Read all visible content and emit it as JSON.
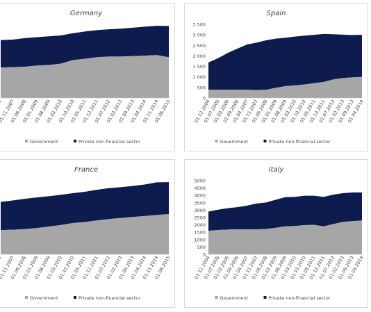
{
  "colors": {
    "government": "#a6a6a6",
    "private": "#0d1b4f",
    "axis_text": "#404040",
    "border": "#d9d9d9"
  },
  "chart_data": [
    {
      "type": "area",
      "stacked": true,
      "title": "Germany",
      "x": [
        "01.04.2007",
        "01.11.2007",
        "01.06.2008",
        "01.01.2009",
        "01.08.2009",
        "01.03.2010",
        "01.10.2010",
        "01.05.2011",
        "01.12.2011",
        "01.07.2012",
        "01.02.2013",
        "01.09.2013",
        "01.04.2014",
        "01.11.2014",
        "01.06.2015"
      ],
      "series": [
        {
          "name": "Government",
          "values": [
            1380,
            1400,
            1420,
            1470,
            1500,
            1560,
            1720,
            1780,
            1850,
            1880,
            1880,
            1900,
            1920,
            1950,
            1850
          ]
        },
        {
          "name": "Private non-financial sector",
          "values": [
            1250,
            1250,
            1300,
            1290,
            1300,
            1280,
            1220,
            1240,
            1230,
            1240,
            1270,
            1290,
            1320,
            1330,
            1420
          ]
        }
      ],
      "legend_position": "bottom"
    },
    {
      "type": "area",
      "stacked": true,
      "title": "Spain",
      "x": [
        "01.12.2004",
        "01.07.2005",
        "01.02.2006",
        "01.09.2006",
        "01.04.2007",
        "01.11.2007",
        "01.06.2008",
        "01.01.2009",
        "01.08.2009",
        "01.03.2010",
        "01.10.2010",
        "01.05.2011",
        "01.12.2011",
        "01.07.2012",
        "01.02.2013",
        "01.09.2013",
        "01.04.2014"
      ],
      "series": [
        {
          "name": "Government",
          "values": [
            390,
            390,
            390,
            390,
            390,
            380,
            390,
            480,
            560,
            600,
            640,
            700,
            760,
            880,
            950,
            980,
            1000
          ]
        },
        {
          "name": "Private non-financial sector",
          "values": [
            1300,
            1500,
            1750,
            1950,
            2150,
            2250,
            2350,
            2340,
            2300,
            2320,
            2320,
            2300,
            2280,
            2150,
            2060,
            2010,
            2000
          ]
        }
      ],
      "ylim": [
        0,
        3500
      ],
      "yticks": [
        "0",
        "500",
        "1 000",
        "1 500",
        "2 000",
        "2 500",
        "3 000",
        "3 500"
      ],
      "legend_position": "bottom"
    },
    {
      "type": "area",
      "stacked": true,
      "title": "France",
      "x": [
        "01.04.2007",
        "01.11.2007",
        "01.06.2008",
        "01.01.2009",
        "01.08.2009",
        "01.03.2010",
        "01.10.2010",
        "01.05.2011",
        "01.12.2011",
        "01.07.2012",
        "01.02.2013",
        "01.09.2013",
        "01.04.2014",
        "01.11.2014",
        "01.06.2015"
      ],
      "series": [
        {
          "name": "Government",
          "values": [
            1200,
            1220,
            1250,
            1300,
            1380,
            1450,
            1550,
            1600,
            1680,
            1750,
            1800,
            1850,
            1900,
            1950,
            2000
          ]
        },
        {
          "name": "Private non-financial sector",
          "values": [
            1400,
            1450,
            1500,
            1520,
            1500,
            1500,
            1480,
            1500,
            1520,
            1530,
            1530,
            1540,
            1560,
            1620,
            1580
          ]
        }
      ],
      "legend_position": "bottom"
    },
    {
      "type": "area",
      "stacked": true,
      "title": "Italy",
      "x": [
        "01.12.2004",
        "01.07.2005",
        "01.02.2006",
        "01.09.2006",
        "01.04.2007",
        "01.11.2007",
        "01.06.2008",
        "01.01.2009",
        "01.08.2009",
        "01.03.2010",
        "01.10.2010",
        "01.05.2011",
        "01.12.2011",
        "01.07.2012",
        "01.02.2013",
        "01.09.2013",
        "01.04.2014"
      ],
      "series": [
        {
          "name": "Government",
          "values": [
            1600,
            1650,
            1680,
            1700,
            1700,
            1700,
            1720,
            1800,
            1900,
            1920,
            1980,
            2000,
            1900,
            2050,
            2200,
            2250,
            2300
          ]
        },
        {
          "name": "Private non-financial sector",
          "values": [
            1300,
            1380,
            1450,
            1500,
            1600,
            1750,
            1800,
            1900,
            1980,
            1980,
            2000,
            1980,
            2000,
            2000,
            1950,
            1950,
            1900
          ]
        }
      ],
      "ylim": [
        0,
        5000
      ],
      "yticks": [
        "0",
        "500",
        "1000",
        "1500",
        "2000",
        "2500",
        "3000",
        "3500",
        "4000",
        "4500",
        "5000"
      ],
      "legend_position": "bottom"
    }
  ]
}
